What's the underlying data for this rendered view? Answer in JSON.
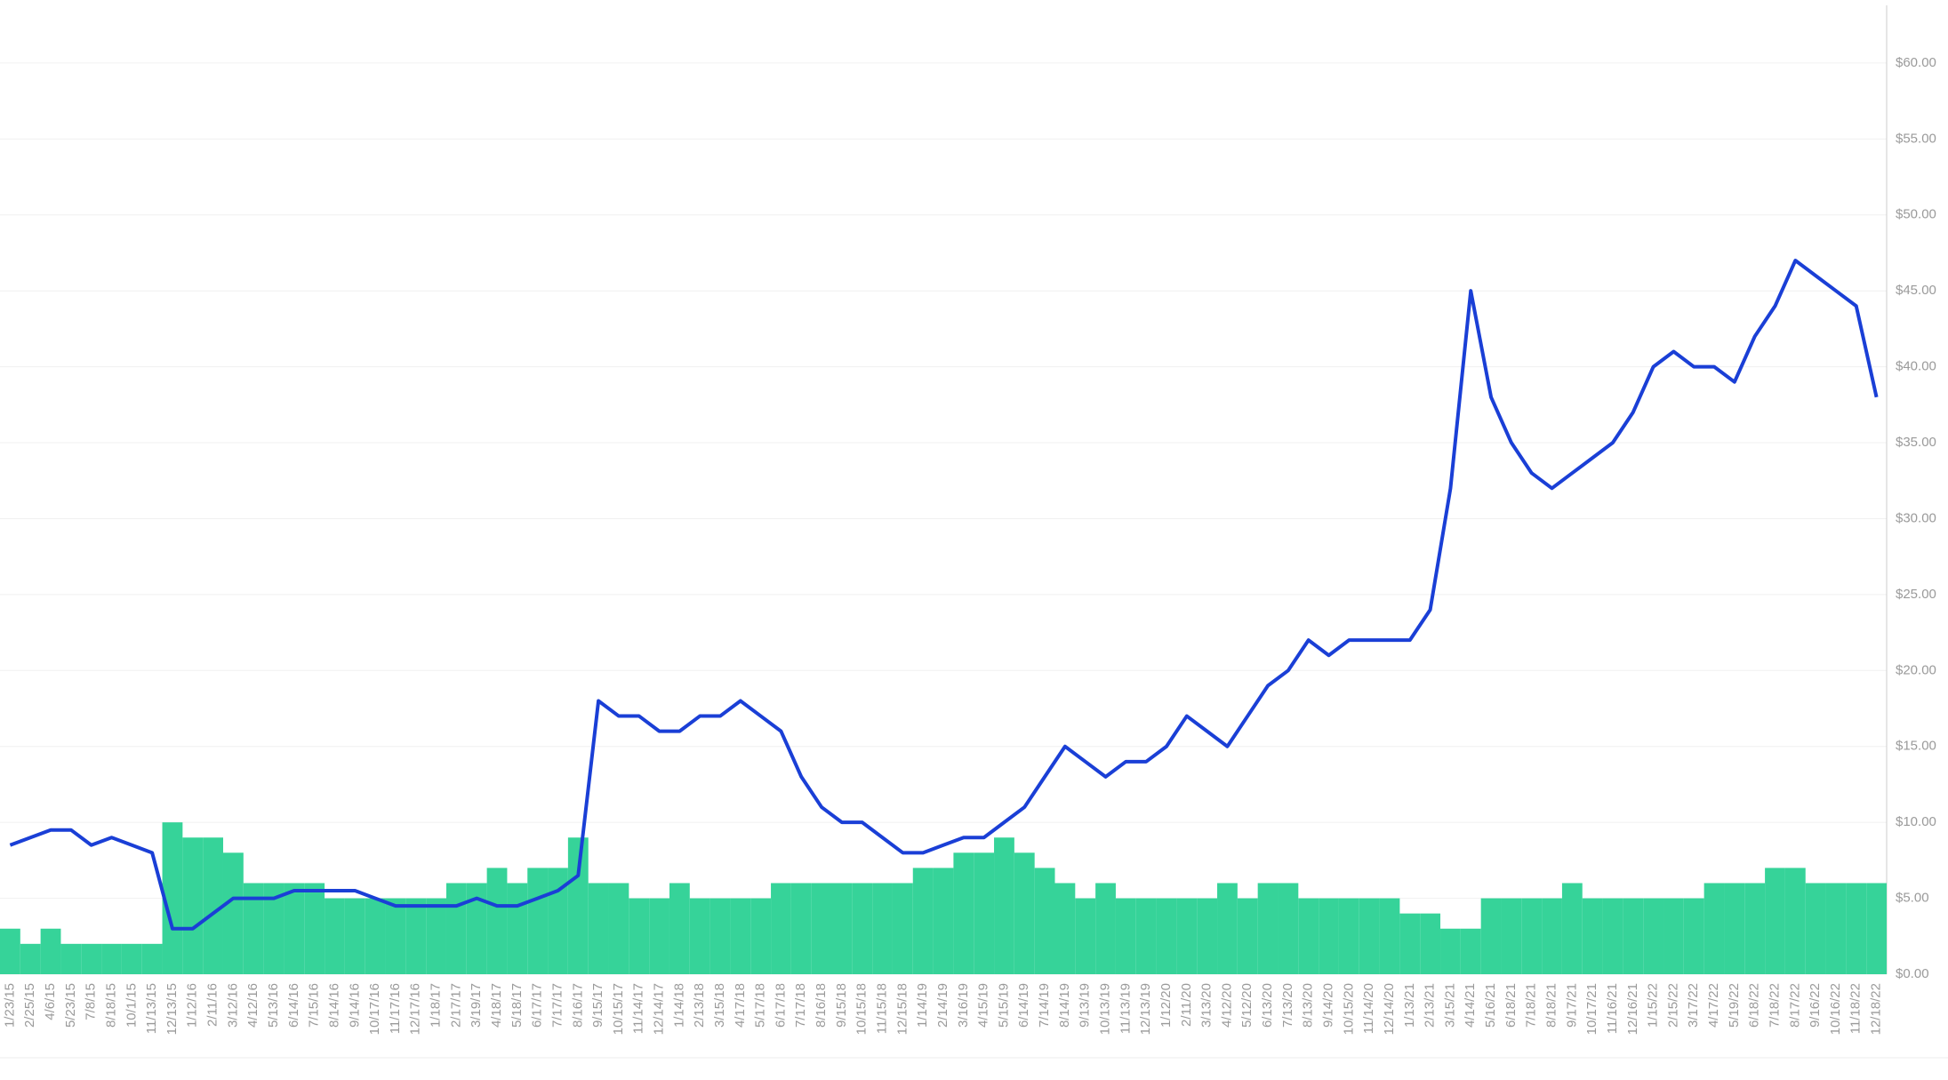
{
  "chart_data": {
    "type": "combo",
    "categories": [
      "1/23/15",
      "2/25/15",
      "4/6/15",
      "5/23/15",
      "7/8/15",
      "8/18/15",
      "10/1/15",
      "11/13/15",
      "12/13/15",
      "1/12/16",
      "2/11/16",
      "3/12/16",
      "4/12/16",
      "5/13/16",
      "6/14/16",
      "7/15/16",
      "8/14/16",
      "9/14/16",
      "10/17/16",
      "11/17/16",
      "12/17/16",
      "1/18/17",
      "2/17/17",
      "3/19/17",
      "4/18/17",
      "5/18/17",
      "6/17/17",
      "7/17/17",
      "8/16/17",
      "9/15/17",
      "10/15/17",
      "11/14/17",
      "12/14/17",
      "1/14/18",
      "2/13/18",
      "3/15/18",
      "4/17/18",
      "5/17/18",
      "6/17/18",
      "7/17/18",
      "8/16/18",
      "9/15/18",
      "10/15/18",
      "11/15/18",
      "12/15/18",
      "1/14/19",
      "2/14/19",
      "3/16/19",
      "4/15/19",
      "5/15/19",
      "6/14/19",
      "7/14/19",
      "8/14/19",
      "9/13/19",
      "10/13/19",
      "11/13/19",
      "12/13/19",
      "1/12/20",
      "2/11/20",
      "3/13/20",
      "4/12/20",
      "5/12/20",
      "6/13/20",
      "7/13/20",
      "8/13/20",
      "9/14/20",
      "10/15/20",
      "11/14/20",
      "12/14/20",
      "1/13/21",
      "2/13/21",
      "3/15/21",
      "4/14/21",
      "5/16/21",
      "6/18/21",
      "7/18/21",
      "8/18/21",
      "9/17/21",
      "10/17/21",
      "11/16/21",
      "12/16/21",
      "1/15/22",
      "2/15/22",
      "3/17/22",
      "4/17/22",
      "5/19/22",
      "6/18/22",
      "7/18/22",
      "8/17/22",
      "9/16/22",
      "10/16/22",
      "11/18/22",
      "12/18/22"
    ],
    "series": [
      {
        "type": "bar",
        "color": "#36d399",
        "values": [
          3,
          2,
          3,
          2,
          2,
          2,
          2,
          2,
          10,
          9,
          9,
          8,
          6,
          6,
          6,
          6,
          5,
          5,
          5,
          5,
          5,
          5,
          6,
          6,
          7,
          6,
          7,
          7,
          9,
          6,
          6,
          5,
          5,
          6,
          5,
          5,
          5,
          5,
          6,
          6,
          6,
          6,
          6,
          6,
          6,
          7,
          7,
          8,
          8,
          9,
          8,
          7,
          6,
          5,
          6,
          5,
          5,
          5,
          5,
          5,
          6,
          5,
          6,
          6,
          5,
          5,
          5,
          5,
          5,
          4,
          4,
          3,
          3,
          5,
          5,
          5,
          5,
          6,
          5,
          5,
          5,
          5,
          5,
          5,
          6,
          6,
          6,
          7,
          7,
          6,
          6,
          6,
          6
        ]
      },
      {
        "type": "line",
        "color": "#1a3fd6",
        "values": [
          8.5,
          9,
          9.5,
          9.5,
          8.5,
          9,
          8.5,
          8,
          3,
          3,
          4,
          5,
          5,
          5,
          5.5,
          5.5,
          5.5,
          5.5,
          5,
          4.5,
          4.5,
          4.5,
          4.5,
          5,
          4.5,
          4.5,
          5,
          5.5,
          6.5,
          18,
          17,
          17,
          16,
          16,
          17,
          17,
          18,
          17,
          16,
          13,
          11,
          10,
          10,
          9,
          8,
          8,
          8.5,
          9,
          9,
          10,
          11,
          13,
          15,
          14,
          13,
          14,
          14,
          15,
          17,
          16,
          15,
          17,
          19,
          20,
          22,
          21,
          22,
          22,
          22,
          22,
          24,
          32,
          45,
          38,
          35,
          33,
          32,
          33,
          34,
          35,
          37,
          40,
          41,
          40,
          40,
          39,
          42,
          44,
          47,
          46,
          45,
          44,
          38
        ]
      }
    ],
    "ylim": [
      0,
      63.8
    ],
    "yticks": [
      {
        "value": 0,
        "label": "$0.00"
      },
      {
        "value": 5,
        "label": "$5.00"
      },
      {
        "value": 10,
        "label": "$10.00"
      },
      {
        "value": 15,
        "label": "$15.00"
      },
      {
        "value": 20,
        "label": "$20.00"
      },
      {
        "value": 25,
        "label": "$25.00"
      },
      {
        "value": 30,
        "label": "$30.00"
      },
      {
        "value": 35,
        "label": "$35.00"
      },
      {
        "value": 40,
        "label": "$40.00"
      },
      {
        "value": 45,
        "label": "$45.00"
      },
      {
        "value": 50,
        "label": "$50.00"
      },
      {
        "value": 55,
        "label": "$55.00"
      },
      {
        "value": 60,
        "label": "$60.00"
      }
    ],
    "grid": true
  }
}
